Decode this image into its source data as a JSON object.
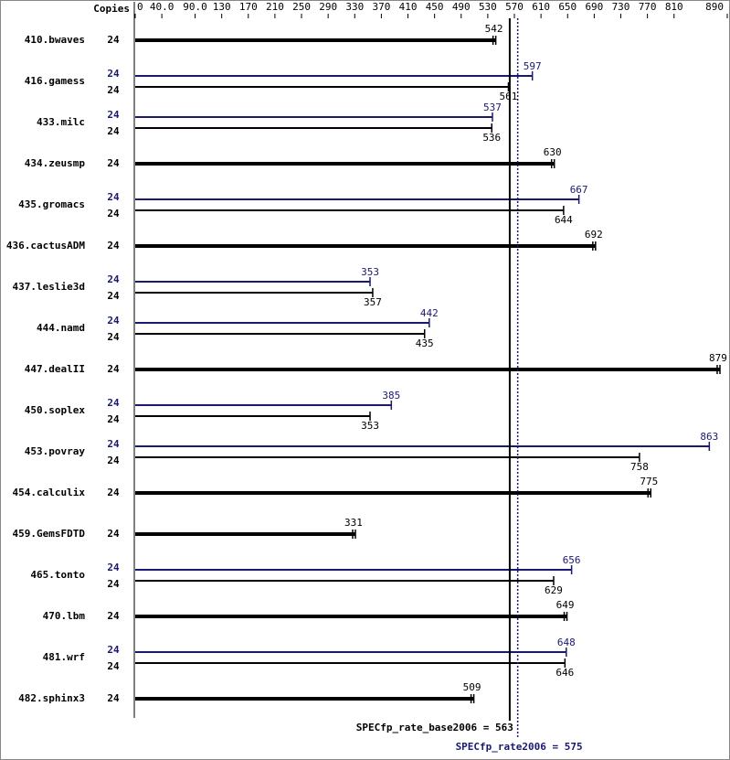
{
  "chart_data": {
    "type": "bar",
    "copies_header": "Copies",
    "categories": [
      "410.bwaves",
      "416.gamess",
      "433.milc",
      "434.zeusmp",
      "435.gromacs",
      "436.cactusADM",
      "437.leslie3d",
      "444.namd",
      "447.dealII",
      "450.soplex",
      "453.povray",
      "454.calculix",
      "459.GemsFDTD",
      "465.tonto",
      "470.lbm",
      "481.wrf",
      "482.sphinx3"
    ],
    "series": [
      {
        "name": "base",
        "color": "#000000",
        "copies": [
          24,
          24,
          24,
          24,
          24,
          24,
          24,
          24,
          24,
          24,
          24,
          24,
          24,
          24,
          24,
          24,
          24
        ],
        "values": [
          542,
          561,
          536,
          630,
          644,
          692,
          357,
          435,
          879,
          353,
          758,
          775,
          331,
          629,
          649,
          646,
          509
        ]
      },
      {
        "name": "peak",
        "color": "#191970",
        "copies": [
          null,
          24,
          24,
          null,
          24,
          null,
          24,
          24,
          null,
          24,
          24,
          null,
          null,
          24,
          null,
          24,
          null
        ],
        "values": [
          null,
          597,
          537,
          null,
          667,
          null,
          353,
          442,
          null,
          385,
          863,
          null,
          null,
          656,
          null,
          648,
          null
        ]
      }
    ],
    "base_metric": {
      "value": 563,
      "label": "SPECfp_rate_base2006 = 563"
    },
    "peak_metric": {
      "value": 575,
      "label": "SPECfp_rate2006 = 575"
    },
    "xlim": [
      0,
      890
    ],
    "xticks": [
      0,
      {
        "value": 40,
        "label": "40.0"
      },
      {
        "value": 90,
        "label": "90.0"
      },
      130,
      170,
      210,
      250,
      290,
      330,
      370,
      410,
      450,
      490,
      530,
      570,
      610,
      650,
      690,
      730,
      770,
      810,
      890
    ]
  }
}
